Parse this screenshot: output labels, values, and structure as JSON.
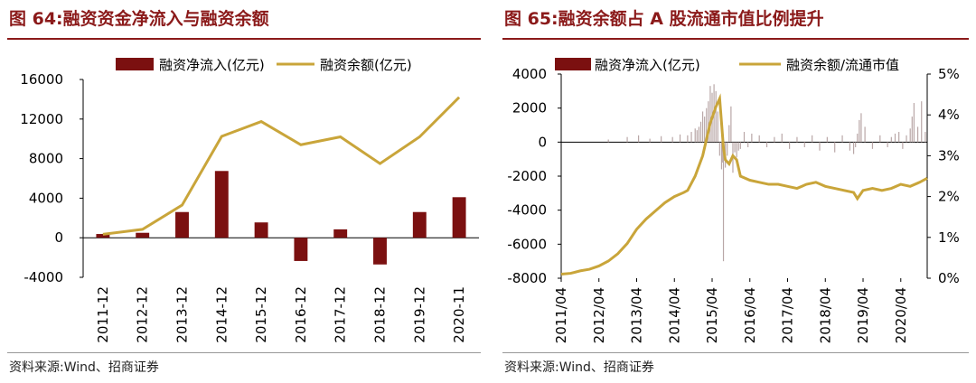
{
  "left_panel": {
    "title": "图 64:融资资金净流入与融资余额",
    "source": "资料来源:Wind、招商证券"
  },
  "right_panel": {
    "title": "图 65:融资余额占 A 股流通市值比例提升",
    "source": "资料来源:Wind、招商证券"
  },
  "colors": {
    "bar": "#7b1010",
    "line": "#c9a53a",
    "title": "#8b1a1a"
  },
  "chart_data": [
    {
      "type": "bar+line",
      "title": "融资资金净流入与融资余额",
      "categories": [
        "2011-12",
        "2012-12",
        "2013-12",
        "2014-12",
        "2015-12",
        "2016-12",
        "2017-12",
        "2018-12",
        "2019-12",
        "2020-11"
      ],
      "series": [
        {
          "name": "融资净流入(亿元)",
          "kind": "bar",
          "values": [
            380,
            500,
            2600,
            6750,
            1550,
            -2350,
            850,
            -2700,
            2600,
            4100
          ]
        },
        {
          "name": "融资余额(亿元)",
          "kind": "line",
          "values": [
            350,
            850,
            3300,
            10250,
            11750,
            9400,
            10200,
            7500,
            10200,
            14200
          ]
        }
      ],
      "ylim": [
        -4000,
        16000
      ],
      "yticks": [
        "-4000",
        "0",
        "4000",
        "8000",
        "12000",
        "16000"
      ],
      "ytick_values": [
        -4000,
        0,
        4000,
        8000,
        12000,
        16000
      ],
      "legend_position": "top"
    },
    {
      "type": "bar+line",
      "title": "融资余额占 A 股流通市值比例提升",
      "x_ticks": [
        "2011/04",
        "2012/04",
        "2013/04",
        "2014/04",
        "2015/04",
        "2016/04",
        "2017/04",
        "2018/04",
        "2019/04",
        "2020/04"
      ],
      "x_range": [
        2011.25,
        2020.95
      ],
      "series": [
        {
          "name": "融资净流入(亿元)",
          "kind": "bar",
          "axis": "left",
          "x": [
            2012.5,
            2013.0,
            2013.3,
            2013.6,
            2013.9,
            2014.2,
            2014.4,
            2014.6,
            2014.7,
            2014.8,
            2014.85,
            2014.9,
            2014.95,
            2015.0,
            2015.05,
            2015.1,
            2015.15,
            2015.2,
            2015.25,
            2015.3,
            2015.35,
            2015.4,
            2015.45,
            2015.5,
            2015.52,
            2015.55,
            2015.6,
            2015.65,
            2015.7,
            2015.75,
            2015.8,
            2015.85,
            2015.9,
            2015.95,
            2016.0,
            2016.1,
            2016.2,
            2016.3,
            2016.5,
            2016.7,
            2016.9,
            2017.1,
            2017.3,
            2017.5,
            2017.7,
            2017.9,
            2018.1,
            2018.3,
            2018.5,
            2018.7,
            2018.9,
            2019.0,
            2019.05,
            2019.1,
            2019.15,
            2019.2,
            2019.3,
            2019.5,
            2019.7,
            2019.9,
            2020.0,
            2020.1,
            2020.2,
            2020.3,
            2020.4,
            2020.5,
            2020.55,
            2020.6,
            2020.7,
            2020.8,
            2020.9
          ],
          "values": [
            150,
            300,
            400,
            200,
            350,
            300,
            450,
            400,
            600,
            800,
            700,
            900,
            1200,
            1800,
            1500,
            2000,
            2400,
            3300,
            2900,
            3400,
            3000,
            1800,
            -800,
            -1600,
            -1200,
            -7000,
            -1500,
            -800,
            1000,
            2100,
            -1800,
            -600,
            -900,
            -500,
            -400,
            600,
            -300,
            500,
            400,
            -300,
            300,
            500,
            -400,
            300,
            -300,
            400,
            -500,
            300,
            -600,
            400,
            -500,
            -700,
            -300,
            500,
            1300,
            1700,
            900,
            -400,
            400,
            -300,
            300,
            500,
            600,
            -400,
            400,
            800,
            1500,
            2300,
            900,
            2400,
            600
          ]
        },
        {
          "name": "融资余额/流通市值",
          "kind": "line",
          "axis": "right",
          "x": [
            2011.25,
            2011.5,
            2011.75,
            2012.0,
            2012.25,
            2012.5,
            2012.75,
            2013.0,
            2013.25,
            2013.5,
            2013.75,
            2014.0,
            2014.25,
            2014.5,
            2014.6,
            2014.8,
            2015.0,
            2015.2,
            2015.35,
            2015.45,
            2015.55,
            2015.6,
            2015.7,
            2015.8,
            2015.9,
            2016.0,
            2016.25,
            2016.5,
            2016.75,
            2017.0,
            2017.25,
            2017.5,
            2017.75,
            2018.0,
            2018.25,
            2018.5,
            2018.75,
            2019.0,
            2019.1,
            2019.25,
            2019.5,
            2019.75,
            2020.0,
            2020.25,
            2020.5,
            2020.75,
            2020.95
          ],
          "values": [
            0.1,
            0.12,
            0.18,
            0.22,
            0.3,
            0.42,
            0.6,
            0.85,
            1.2,
            1.45,
            1.65,
            1.85,
            2.0,
            2.1,
            2.15,
            2.5,
            3.0,
            3.8,
            4.2,
            4.4,
            3.2,
            2.9,
            2.8,
            3.0,
            2.9,
            2.5,
            2.4,
            2.35,
            2.3,
            2.3,
            2.25,
            2.2,
            2.3,
            2.35,
            2.25,
            2.2,
            2.15,
            2.1,
            1.95,
            2.15,
            2.2,
            2.15,
            2.2,
            2.3,
            2.25,
            2.35,
            2.45
          ]
        }
      ],
      "ylim_left": [
        -8000,
        4000
      ],
      "yticks_left": [
        "-8000",
        "-6000",
        "-4000",
        "-2000",
        "0",
        "2000",
        "4000"
      ],
      "ytick_values_left": [
        -8000,
        -6000,
        -4000,
        -2000,
        0,
        2000,
        4000
      ],
      "ylim_right": [
        0,
        5
      ],
      "yticks_right": [
        "0%",
        "1%",
        "2%",
        "3%",
        "4%",
        "5%"
      ],
      "ytick_values_right": [
        0,
        1,
        2,
        3,
        4,
        5
      ],
      "legend_position": "top"
    }
  ]
}
